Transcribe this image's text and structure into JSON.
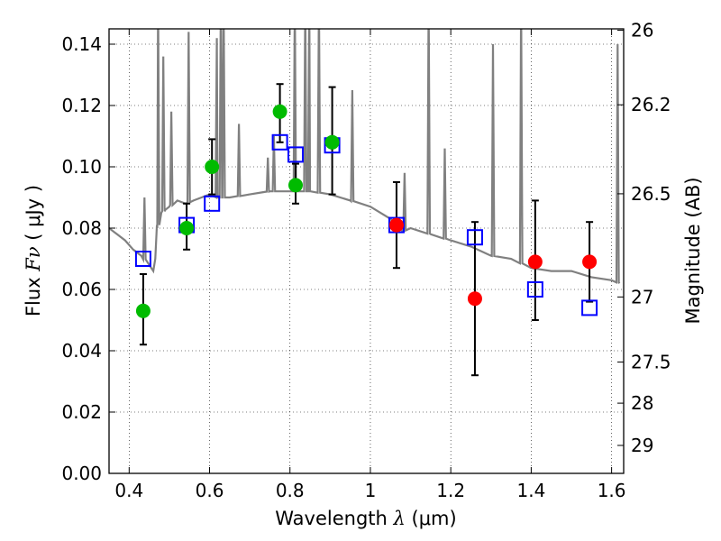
{
  "chart_data": {
    "type": "scatter",
    "xlabel_prefix": "Wavelength  ",
    "xlabel_symbol": "λ",
    "xlabel_units": " (μm)",
    "ylabel_prefix": "Flux  ",
    "ylabel_symbol": "Fν",
    "ylabel_units": "  ( μJy )",
    "y2label": "Magnitude (AB)",
    "xlim": [
      0.35,
      1.63
    ],
    "ylim": [
      0.0,
      0.145
    ],
    "grid": true,
    "x_ticks": [
      0.4,
      0.6,
      0.8,
      1.0,
      1.2,
      1.4,
      1.6
    ],
    "x_tick_labels": [
      "0.4",
      "0.6",
      "0.8",
      "1",
      "1.2",
      "1.4",
      "1.6"
    ],
    "y_ticks": [
      0.0,
      0.02,
      0.04,
      0.06,
      0.08,
      0.1,
      0.12,
      0.14
    ],
    "y_tick_labels": [
      "0.00",
      "0.02",
      "0.04",
      "0.06",
      "0.08",
      "0.10",
      "0.12",
      "0.14"
    ],
    "mag_ticks": [
      {
        "mag": 26,
        "label": "26"
      },
      {
        "mag": 26.2,
        "label": "26.2"
      },
      {
        "mag": 26.5,
        "label": "26.5"
      },
      {
        "mag": 27,
        "label": "27"
      },
      {
        "mag": 27.5,
        "label": "27.5"
      },
      {
        "mag": 28,
        "label": "28"
      },
      {
        "mag": 29,
        "label": "29"
      }
    ],
    "colors": {
      "model_sed": "#808080",
      "green": "#00bb00",
      "red": "#ff0000",
      "box": "#0000ff",
      "errorbar": "#000000"
    },
    "series": [
      {
        "name": "observed (green)",
        "marker": "circle",
        "points": [
          {
            "x": 0.435,
            "y": 0.053,
            "lo": 0.042,
            "hi": 0.065
          },
          {
            "x": 0.543,
            "y": 0.08,
            "lo": 0.073,
            "hi": 0.088
          },
          {
            "x": 0.606,
            "y": 0.1,
            "lo": 0.091,
            "hi": 0.109
          },
          {
            "x": 0.775,
            "y": 0.118,
            "lo": 0.108,
            "hi": 0.127
          },
          {
            "x": 0.814,
            "y": 0.094,
            "lo": 0.088,
            "hi": 0.101
          },
          {
            "x": 0.905,
            "y": 0.108,
            "lo": 0.091,
            "hi": 0.126
          }
        ]
      },
      {
        "name": "observed (red)",
        "marker": "circle",
        "points": [
          {
            "x": 1.065,
            "y": 0.081,
            "lo": 0.067,
            "hi": 0.095
          },
          {
            "x": 1.26,
            "y": 0.057,
            "lo": 0.032,
            "hi": 0.082
          },
          {
            "x": 1.41,
            "y": 0.069,
            "lo": 0.05,
            "hi": 0.089
          },
          {
            "x": 1.545,
            "y": 0.069,
            "lo": 0.056,
            "hi": 0.082
          }
        ]
      },
      {
        "name": "model photometry",
        "marker": "square",
        "points": [
          {
            "x": 0.435,
            "y": 0.07
          },
          {
            "x": 0.543,
            "y": 0.081
          },
          {
            "x": 0.606,
            "y": 0.088
          },
          {
            "x": 0.775,
            "y": 0.108
          },
          {
            "x": 0.814,
            "y": 0.104
          },
          {
            "x": 0.905,
            "y": 0.107
          },
          {
            "x": 1.065,
            "y": 0.081
          },
          {
            "x": 1.26,
            "y": 0.077
          },
          {
            "x": 1.41,
            "y": 0.06
          },
          {
            "x": 1.545,
            "y": 0.054
          }
        ]
      }
    ],
    "model_sed": {
      "name": "model SED",
      "x": [
        0.35,
        0.37,
        0.39,
        0.41,
        0.43,
        0.45,
        0.46,
        0.465,
        0.47,
        0.48,
        0.49,
        0.5,
        0.52,
        0.54,
        0.56,
        0.58,
        0.6,
        0.62,
        0.65,
        0.7,
        0.75,
        0.8,
        0.85,
        0.9,
        0.95,
        1.0,
        1.05,
        1.08,
        1.1,
        1.15,
        1.2,
        1.25,
        1.3,
        1.35,
        1.4,
        1.45,
        1.5,
        1.55,
        1.6,
        1.62
      ],
      "y": [
        0.08,
        0.078,
        0.076,
        0.073,
        0.071,
        0.068,
        0.066,
        0.07,
        0.08,
        0.085,
        0.086,
        0.087,
        0.089,
        0.088,
        0.089,
        0.09,
        0.091,
        0.09,
        0.09,
        0.091,
        0.092,
        0.092,
        0.092,
        0.091,
        0.089,
        0.087,
        0.083,
        0.079,
        0.08,
        0.078,
        0.076,
        0.074,
        0.071,
        0.07,
        0.067,
        0.066,
        0.066,
        0.064,
        0.063,
        0.062
      ],
      "lines": [
        {
          "x": 0.438,
          "y": 0.08
        },
        {
          "x": 0.472,
          "y": 0.145
        },
        {
          "x": 0.485,
          "y": 0.126
        },
        {
          "x": 0.505,
          "y": 0.108
        },
        {
          "x": 0.548,
          "y": 0.134
        },
        {
          "x": 0.618,
          "y": 0.132
        },
        {
          "x": 0.628,
          "y": 0.145
        },
        {
          "x": 0.635,
          "y": 0.145
        },
        {
          "x": 0.673,
          "y": 0.104
        },
        {
          "x": 0.745,
          "y": 0.093
        },
        {
          "x": 0.76,
          "y": 0.1
        },
        {
          "x": 0.812,
          "y": 0.145
        },
        {
          "x": 0.838,
          "y": 0.145
        },
        {
          "x": 0.848,
          "y": 0.145
        },
        {
          "x": 0.872,
          "y": 0.145
        },
        {
          "x": 0.955,
          "y": 0.115
        },
        {
          "x": 1.085,
          "y": 0.088
        },
        {
          "x": 1.145,
          "y": 0.145
        },
        {
          "x": 1.185,
          "y": 0.096
        },
        {
          "x": 1.305,
          "y": 0.13
        },
        {
          "x": 1.375,
          "y": 0.145
        },
        {
          "x": 1.615,
          "y": 0.13
        }
      ]
    }
  }
}
